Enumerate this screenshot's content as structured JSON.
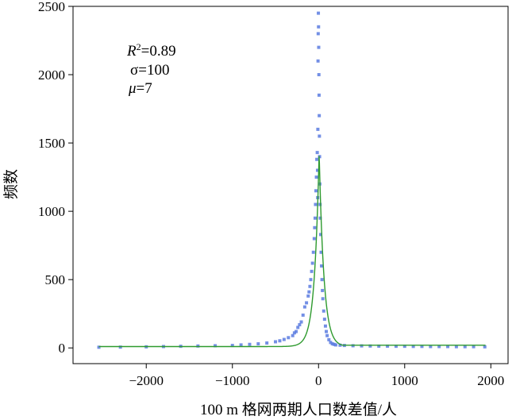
{
  "chart_data": {
    "type": "scatter",
    "xlabel": "100 m 格网两期人口数差值/人",
    "ylabel": "频数",
    "xlim": [
      -2850,
      2200
    ],
    "ylim": [
      -115,
      2500
    ],
    "xticks": [
      -2000,
      -1000,
      0,
      1000,
      2000
    ],
    "xtick_labels": [
      "−2000",
      "−1000",
      "0",
      "1000",
      "2000"
    ],
    "yticks": [
      0,
      500,
      1000,
      1500,
      2000,
      2500
    ],
    "ytick_labels": [
      "0",
      "500",
      "1000",
      "1500",
      "2000",
      "2500"
    ],
    "annotations": {
      "r2_symbol": "R",
      "r2_sup": "2",
      "r2_value": "=0.89",
      "sigma_text": "σ=100",
      "mu_symbol": "μ",
      "mu_value": "=7"
    },
    "fit_params": {
      "r2": 0.89,
      "sigma": 100,
      "mu": 7
    },
    "colors": {
      "points": "#5b7be0",
      "fit": "#2e9a2e"
    },
    "series": [
      {
        "type": "points",
        "x": [
          -2550,
          -2300,
          -2000,
          -1800,
          -1600,
          -1400,
          -1200,
          -1000,
          -900,
          -800,
          -700,
          -600,
          -500,
          -450,
          -400,
          -350,
          -300,
          -280,
          -260,
          -240,
          -220,
          -200,
          -180,
          -160,
          -140,
          -120,
          -110,
          -100,
          -90,
          -80,
          -70,
          -60,
          -50,
          -45,
          -40,
          -35,
          -30,
          -25,
          -20,
          -15,
          -12,
          -10,
          -8,
          -6,
          -4,
          -2,
          0,
          2,
          4,
          6,
          8,
          10,
          12,
          15,
          18,
          20,
          25,
          30,
          35,
          40,
          45,
          50,
          60,
          70,
          80,
          90,
          100,
          120,
          140,
          160,
          180,
          200,
          250,
          300,
          400,
          500,
          600,
          700,
          800,
          900,
          1000,
          1100,
          1200,
          1300,
          1400,
          1500,
          1600,
          1700,
          1800,
          1930
        ],
        "y": [
          5,
          6,
          8,
          10,
          12,
          14,
          16,
          18,
          22,
          26,
          30,
          36,
          45,
          52,
          62,
          75,
          90,
          110,
          120,
          150,
          170,
          190,
          240,
          300,
          330,
          380,
          410,
          450,
          500,
          560,
          620,
          700,
          800,
          880,
          950,
          1050,
          1150,
          1250,
          1380,
          1430,
          1300,
          1100,
          1600,
          2100,
          2300,
          2450,
          2350,
          2200,
          2000,
          1850,
          1700,
          1550,
          1400,
          1200,
          1050,
          950,
          830,
          700,
          600,
          500,
          420,
          360,
          270,
          210,
          160,
          120,
          90,
          60,
          40,
          30,
          26,
          22,
          20,
          18,
          16,
          15,
          14,
          13,
          13,
          12,
          12,
          11,
          11,
          10,
          10,
          10,
          9,
          9,
          9,
          8
        ]
      }
    ]
  }
}
